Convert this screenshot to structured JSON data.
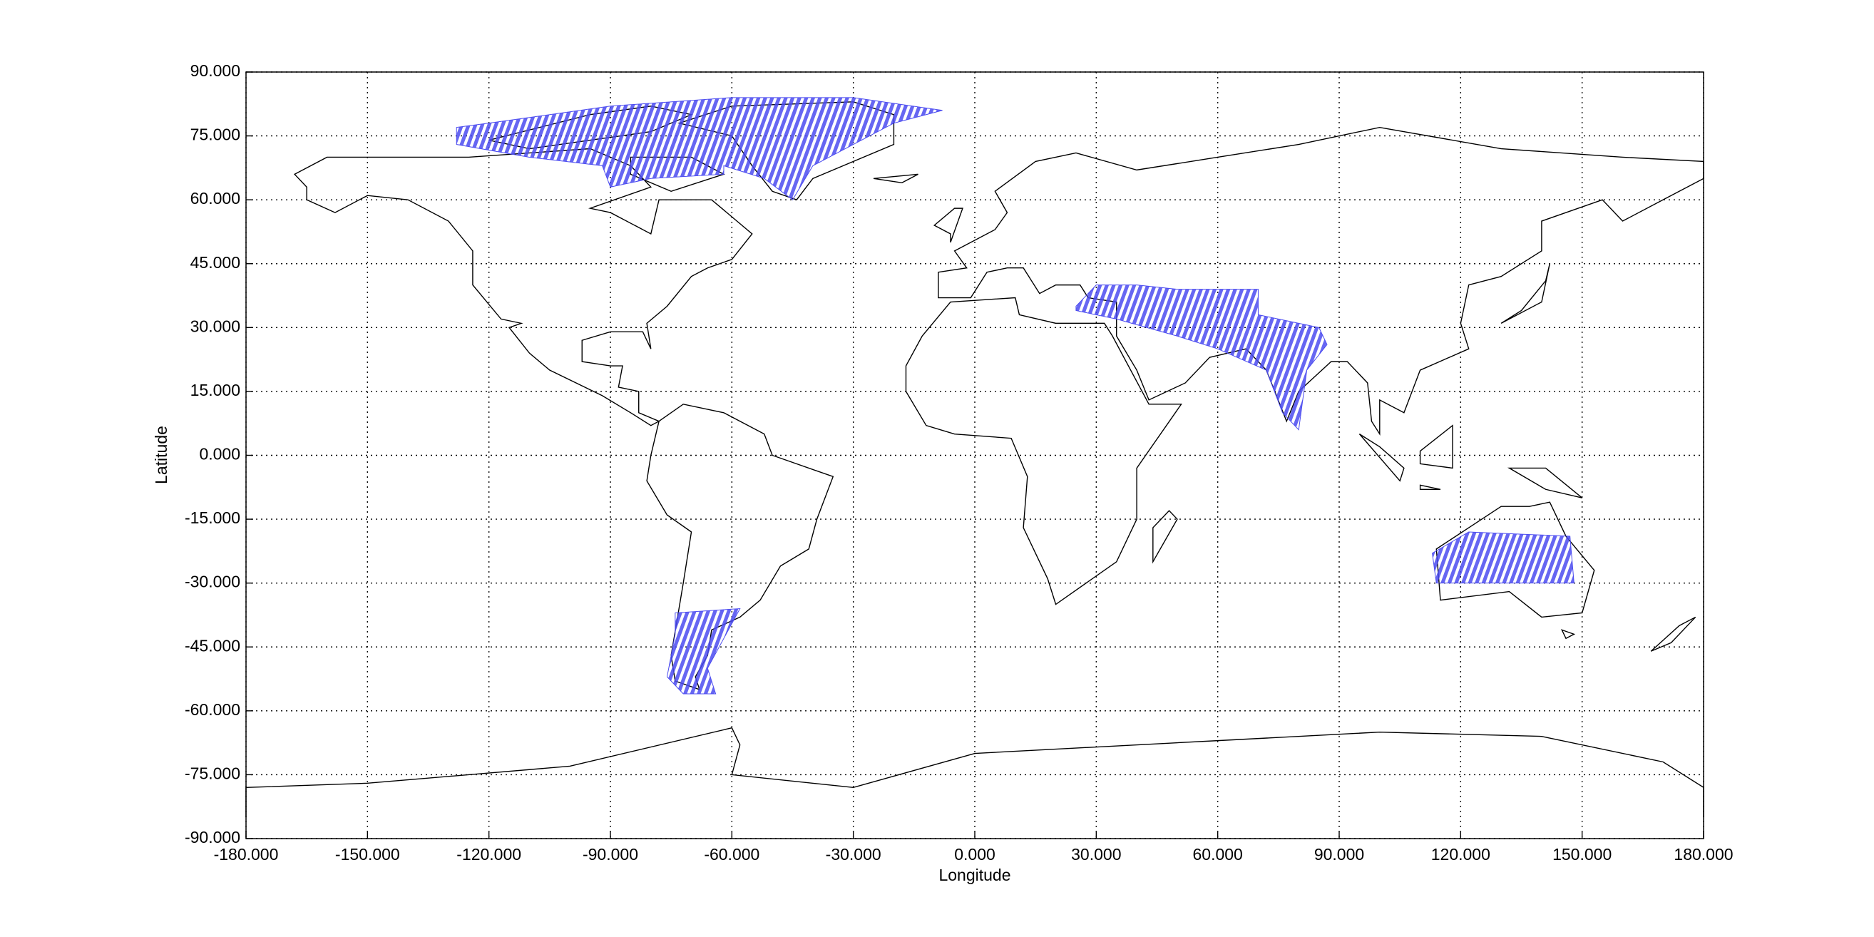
{
  "chart_data": {
    "type": "map",
    "x_label": "Longitude",
    "y_label": "Latitude",
    "xlim": [
      -180,
      180
    ],
    "ylim": [
      -90,
      90
    ],
    "xticks": [
      {
        "value": -180,
        "label": "-180.000"
      },
      {
        "value": -150,
        "label": "-150.000"
      },
      {
        "value": -120,
        "label": "-120.000"
      },
      {
        "value": -90,
        "label": "-90.000"
      },
      {
        "value": -60,
        "label": "-60.000"
      },
      {
        "value": -30,
        "label": "-30.000"
      },
      {
        "value": 0,
        "label": "0.000"
      },
      {
        "value": 30,
        "label": "30.000"
      },
      {
        "value": 60,
        "label": "60.000"
      },
      {
        "value": 90,
        "label": "90.000"
      },
      {
        "value": 120,
        "label": "120.000"
      },
      {
        "value": 150,
        "label": "150.000"
      },
      {
        "value": 180,
        "label": "180.000"
      }
    ],
    "yticks": [
      {
        "value": 90,
        "label": "90.000"
      },
      {
        "value": 75,
        "label": "75.000"
      },
      {
        "value": 60,
        "label": "60.000"
      },
      {
        "value": 45,
        "label": "45.000"
      },
      {
        "value": 30,
        "label": "30.000"
      },
      {
        "value": 15,
        "label": "15.000"
      },
      {
        "value": 0,
        "label": "0.000"
      },
      {
        "value": -15,
        "label": "-15.000"
      },
      {
        "value": -30,
        "label": "-30.000"
      },
      {
        "value": -45,
        "label": "-45.000"
      },
      {
        "value": -60,
        "label": "-60.000"
      },
      {
        "value": -75,
        "label": "-75.000"
      },
      {
        "value": -90,
        "label": "-90.000"
      }
    ],
    "grid": true,
    "color": "#4b4bf0",
    "regions": [
      {
        "lon": [
          -128,
          -120,
          -90,
          -60,
          -30,
          -8,
          -20,
          -30,
          -40,
          -45,
          -52,
          -62,
          -62,
          -80,
          -90,
          -92,
          -110,
          -128
        ],
        "lat": [
          77,
          78,
          82,
          84,
          84,
          81,
          78,
          73,
          68,
          60,
          65,
          68,
          66,
          65,
          63,
          68,
          70,
          73
        ]
      },
      {
        "lon": [
          25,
          30,
          40,
          50,
          70,
          70,
          85,
          87,
          82,
          80,
          76,
          72,
          60,
          50,
          35,
          25
        ],
        "lat": [
          35,
          40,
          40,
          39,
          39,
          33,
          30,
          26,
          20,
          6,
          10,
          20,
          25,
          28,
          32,
          34
        ]
      },
      {
        "lon": [
          113,
          122,
          147,
          148,
          114
        ],
        "lat": [
          -23,
          -18,
          -19,
          -30,
          -30
        ]
      },
      {
        "lon": [
          -74,
          -58,
          -62,
          -66,
          -64,
          -72,
          -76,
          -74
        ],
        "lat": [
          -37,
          -36,
          -43,
          -50,
          -56,
          -56,
          -52,
          -42
        ]
      }
    ]
  }
}
